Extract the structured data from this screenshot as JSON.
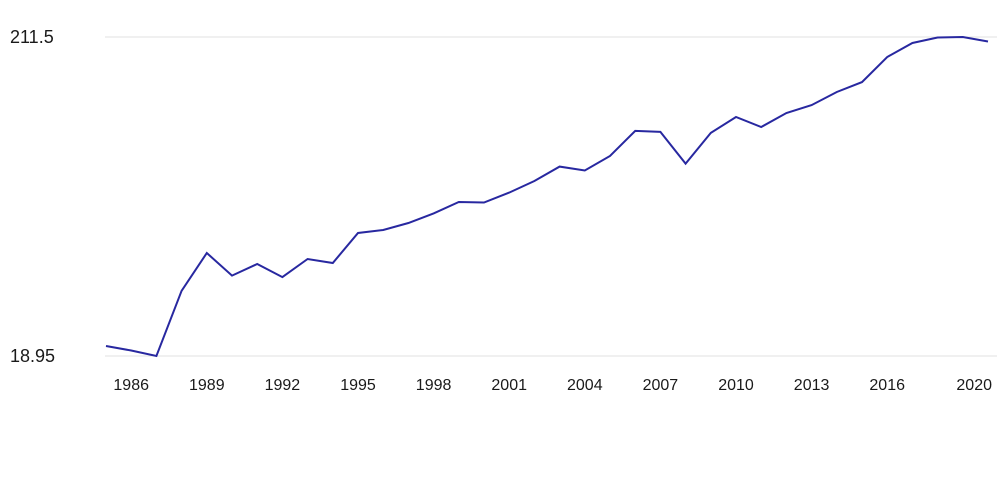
{
  "chart_data": {
    "type": "line",
    "title": "",
    "xlabel": "",
    "ylabel": "",
    "x": [
      1985,
      1986,
      1987,
      1988,
      1989,
      1990,
      1991,
      1992,
      1993,
      1994,
      1995,
      1996,
      1997,
      1998,
      1999,
      2000,
      2001,
      2002,
      2003,
      2004,
      2005,
      2006,
      2007,
      2008,
      2009,
      2010,
      2011,
      2012,
      2013,
      2014,
      2015,
      2016,
      2017,
      2018,
      2019,
      2020
    ],
    "values": [
      25.0,
      22.3,
      18.95,
      58.3,
      81.1,
      67.5,
      74.5,
      66.6,
      77.5,
      75.1,
      93.2,
      95.0,
      99.2,
      105.0,
      111.9,
      111.6,
      117.6,
      124.6,
      133.3,
      130.9,
      139.7,
      154.8,
      154.2,
      135.1,
      153.6,
      163.2,
      157.2,
      165.6,
      170.4,
      178.3,
      184.3,
      199.4,
      207.9,
      211.2,
      211.5,
      208.8
    ],
    "x_tick_labels": [
      "1986",
      "1989",
      "1992",
      "1995",
      "1998",
      "2001",
      "2004",
      "2007",
      "2010",
      "2013",
      "2016",
      "2020"
    ],
    "y_axis_labels": {
      "max": "211.5",
      "min": "18.95"
    },
    "ylim": [
      18.95,
      211.5
    ],
    "xlim": [
      1985,
      2020
    ],
    "legend": "none",
    "grid": "horizontal gridlines at min and max values only",
    "colors": {
      "line": "#2828a0",
      "gridline": "#e0e0e0",
      "label": "#1a1a1a",
      "background": "#ffffff"
    }
  }
}
